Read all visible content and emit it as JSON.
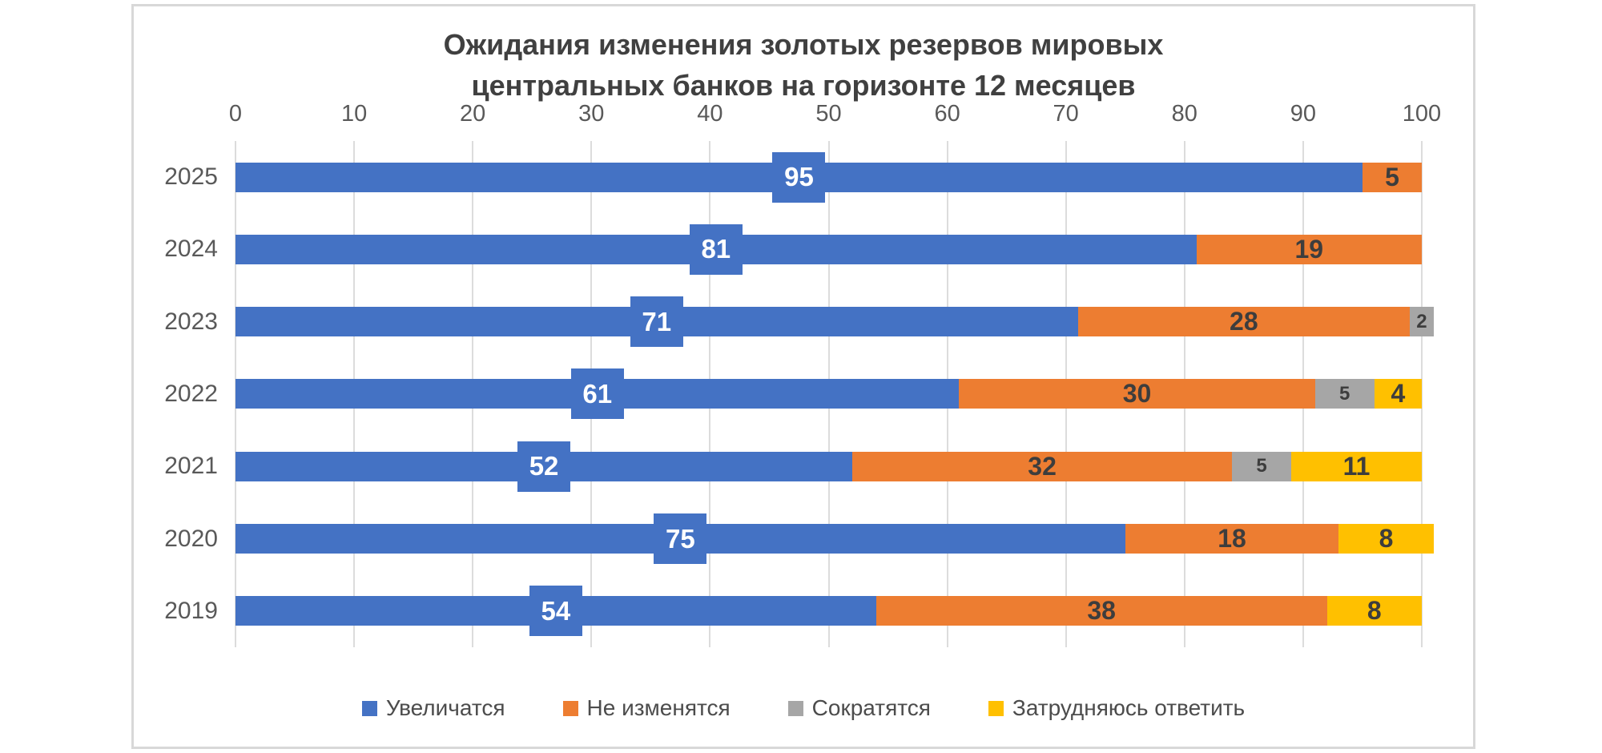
{
  "chart_data": {
    "type": "bar",
    "stacked": true,
    "orientation": "horizontal",
    "title": "Ожидания изменения золотых резервов мировых центральных банков на горизонте 12 месяцев",
    "title_lines": [
      "Ожидания изменения золотых резервов мировых",
      "центральных банков на горизонте 12 месяцев"
    ],
    "categories": [
      "2025",
      "2024",
      "2023",
      "2022",
      "2021",
      "2020",
      "2019"
    ],
    "series": [
      {
        "name": "Увеличатся",
        "key": "increase",
        "color": "#4472C4",
        "values": [
          95,
          81,
          71,
          61,
          52,
          75,
          54
        ]
      },
      {
        "name": "Не изменятся",
        "key": "unchanged",
        "color": "#ED7D31",
        "values": [
          5,
          19,
          28,
          30,
          32,
          18,
          38
        ]
      },
      {
        "name": "Сократятся",
        "key": "decrease",
        "color": "#A6A6A6",
        "values": [
          0,
          0,
          2,
          5,
          5,
          0,
          0
        ]
      },
      {
        "name": "Затрудняюсь ответить",
        "key": "undecided",
        "color": "#FFC000",
        "values": [
          0,
          0,
          0,
          4,
          11,
          8,
          8
        ]
      }
    ],
    "xlim": [
      0,
      100
    ],
    "x_ticks": [
      0,
      10,
      20,
      30,
      40,
      50,
      60,
      70,
      80,
      90,
      100
    ],
    "grid": true,
    "legend_position": "bottom",
    "colors": {
      "grid_line": "#dcdcdc",
      "axis_text": "#595959",
      "title_text": "#404040",
      "value_text": "#3d3d3d",
      "card_border": "#d8d8d8"
    }
  }
}
